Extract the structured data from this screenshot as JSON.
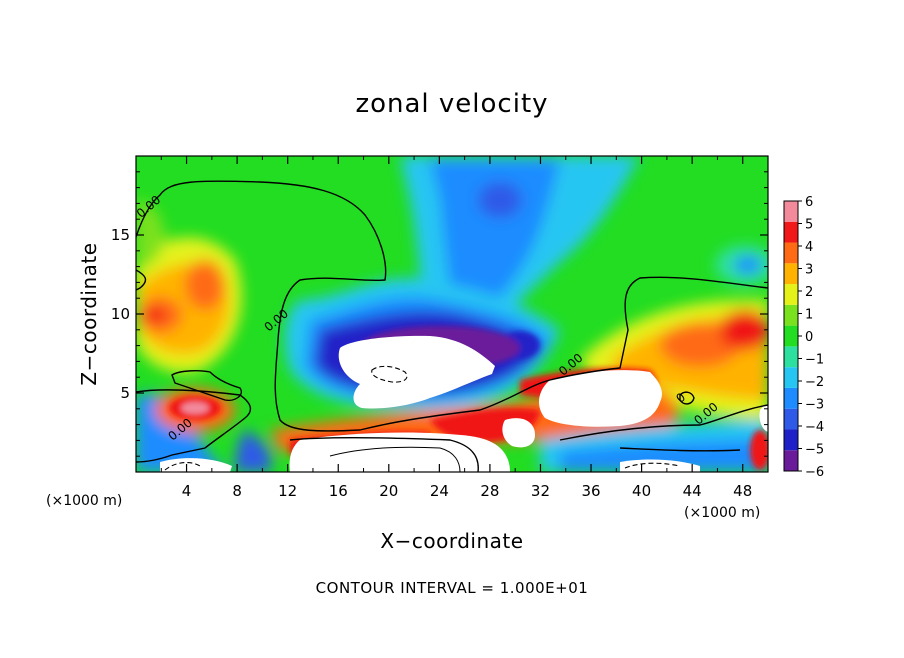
{
  "chart_data": {
    "type": "heatmap",
    "title": "zonal velocity",
    "xlabel": "X−coordinate",
    "ylabel": "Z−coordinate",
    "x_unit_left": "(×1000 m)",
    "x_unit_right": "(×1000 m)",
    "footer": "CONTOUR INTERVAL = 1.000E+01",
    "xlim": [
      0,
      50
    ],
    "ylim": [
      0,
      20
    ],
    "x_ticks": [
      4,
      8,
      12,
      16,
      20,
      24,
      28,
      32,
      36,
      40,
      44,
      48
    ],
    "x_tick_labels": [
      "4",
      "8",
      "12",
      "16",
      "20",
      "24",
      "28",
      "32",
      "36",
      "40",
      "44",
      "48"
    ],
    "y_ticks": [
      5,
      10,
      15
    ],
    "y_tick_labels": [
      "5",
      "10",
      "15"
    ],
    "colorbar": {
      "range": [
        -6,
        6
      ],
      "ticks": [
        6,
        5,
        4,
        3,
        2,
        1,
        0,
        -1,
        -2,
        -3,
        -4,
        -5,
        -6
      ],
      "tick_labels": [
        "6",
        "5",
        "4",
        "3",
        "2",
        "1",
        "0",
        "−1",
        "−2",
        "−3",
        "−4",
        "−5",
        "−6"
      ],
      "colors": [
        "#6a1b9a",
        "#2020c8",
        "#2f5ae8",
        "#1e8cff",
        "#27c6f2",
        "#2ee0a0",
        "#22dd22",
        "#7ae11e",
        "#e4f21a",
        "#ffb300",
        "#ff6a14",
        "#f01818",
        "#f28a9c"
      ]
    },
    "contour_labels": [
      {
        "text": "0.00",
        "x": 1.2,
        "y": 16.6
      },
      {
        "text": "0.00",
        "x": 11.3,
        "y": 9.4
      },
      {
        "text": "0.00",
        "x": 3.7,
        "y": 2.5
      },
      {
        "text": "0.00",
        "x": 34.6,
        "y": 6.6
      },
      {
        "text": "0.00",
        "x": 45.3,
        "y": 3.5
      },
      {
        "text": "0",
        "x": 43.3,
        "y": 4.5
      }
    ],
    "grid": false
  }
}
